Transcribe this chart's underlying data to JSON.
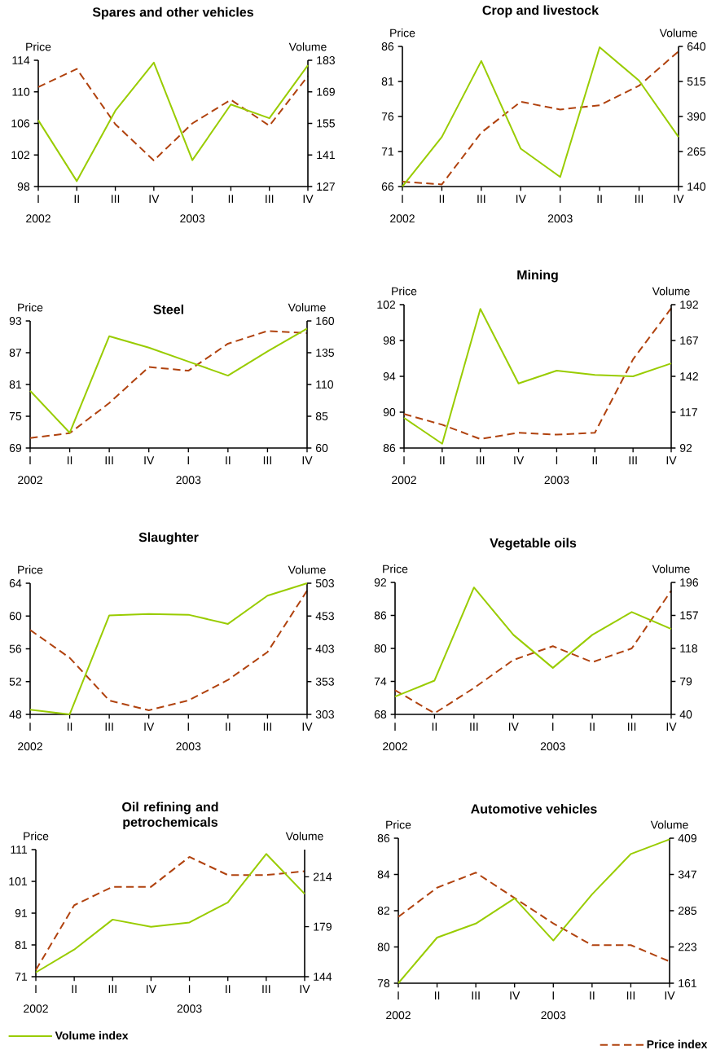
{
  "chart_data": [
    {
      "type": "line",
      "title": "Spares and other vehicles",
      "ylabel": "Price",
      "y2label": "Volume",
      "categories": [
        "I",
        "II",
        "III",
        "IV",
        "I",
        "II",
        "III",
        "IV"
      ],
      "annotations": [
        "2002",
        "2003"
      ],
      "ylim": [
        98,
        114
      ],
      "yticks": [
        98,
        102,
        106,
        110,
        114
      ],
      "y2lim": [
        127,
        183
      ],
      "y2ticks": [
        127,
        141,
        155,
        169,
        183
      ],
      "series": [
        {
          "color": "#b0420e",
          "line_style": "dashed",
          "axis": "y",
          "values": [
            110.6,
            112.9,
            105.9,
            101.3,
            106.0,
            109.0,
            105.7,
            112.0
          ]
        },
        {
          "color": "#99cc00",
          "line_style": "solid",
          "axis": "y2",
          "values": [
            156.4,
            129.4,
            160.6,
            182.0,
            138.7,
            163.4,
            157.3,
            180.8
          ]
        }
      ]
    },
    {
      "type": "line",
      "title": "Crop and livestock",
      "ylabel": "Price",
      "y2label": "Volume",
      "categories": [
        "I",
        "II",
        "III",
        "IV",
        "I",
        "II",
        "III",
        "IV"
      ],
      "annotations": [
        "2002",
        "2003"
      ],
      "ylim": [
        66,
        86
      ],
      "yticks": [
        66,
        71,
        76,
        81,
        86
      ],
      "y2lim": [
        140,
        640
      ],
      "y2ticks": [
        140,
        265,
        390,
        515,
        640
      ],
      "series": [
        {
          "color": "#b0420e",
          "line_style": "dashed",
          "axis": "y",
          "values": [
            66.7,
            66.3,
            73.7,
            78.1,
            77.0,
            77.6,
            80.4,
            85.3
          ]
        },
        {
          "color": "#99cc00",
          "line_style": "solid",
          "axis": "y2",
          "values": [
            140,
            317,
            588,
            275,
            174,
            637,
            518,
            317
          ]
        }
      ]
    },
    {
      "type": "line",
      "title": "Steel",
      "ylabel": "Price",
      "y2label": "Volume",
      "categories": [
        "I",
        "II",
        "III",
        "IV",
        "I",
        "II",
        "III",
        "IV"
      ],
      "annotations": [
        "2002",
        "2003"
      ],
      "ylim": [
        69,
        93
      ],
      "yticks": [
        69,
        75,
        81,
        87,
        93
      ],
      "y2lim": [
        60,
        160
      ],
      "y2ticks": [
        60,
        85,
        110,
        135,
        160
      ],
      "series": [
        {
          "color": "#b0420e",
          "line_style": "dashed",
          "axis": "y",
          "values": [
            70.9,
            71.8,
            77.5,
            84.3,
            83.6,
            88.7,
            91.1,
            90.7
          ]
        },
        {
          "color": "#99cc00",
          "line_style": "solid",
          "axis": "y2",
          "values": [
            105,
            72,
            148,
            139,
            128,
            117,
            136,
            154
          ]
        }
      ]
    },
    {
      "type": "line",
      "title": "Mining",
      "ylabel": "Price",
      "y2label": "Volume",
      "categories": [
        "I",
        "II",
        "III",
        "IV",
        "I",
        "II",
        "III",
        "IV"
      ],
      "annotations": [
        "2002",
        "2003"
      ],
      "ylim": [
        86,
        102
      ],
      "yticks": [
        86,
        90,
        94,
        98,
        102
      ],
      "y2lim": [
        92,
        192
      ],
      "y2ticks": [
        92,
        117,
        142,
        167,
        192
      ],
      "series": [
        {
          "color": "#b0420e",
          "line_style": "dashed",
          "axis": "y",
          "values": [
            89.8,
            88.6,
            87.0,
            87.7,
            87.5,
            87.7,
            95.9,
            101.6
          ]
        },
        {
          "color": "#99cc00",
          "line_style": "solid",
          "axis": "y2",
          "values": [
            113,
            95,
            189,
            137,
            146,
            143,
            142,
            151
          ]
        }
      ]
    },
    {
      "type": "line",
      "title": "Slaughter",
      "ylabel": "Price",
      "y2label": "Volume",
      "categories": [
        "I",
        "II",
        "III",
        "IV",
        "I",
        "II",
        "III",
        "IV"
      ],
      "annotations": [
        "2002",
        "2003"
      ],
      "ylim": [
        48,
        64
      ],
      "yticks": [
        48,
        52,
        56,
        60,
        64
      ],
      "y2lim": [
        303,
        503
      ],
      "y2ticks": [
        303,
        353,
        403,
        453,
        503
      ],
      "series": [
        {
          "color": "#b0420e",
          "line_style": "dashed",
          "axis": "y",
          "values": [
            58.3,
            54.9,
            49.7,
            48.5,
            49.7,
            52.2,
            55.6,
            63.1
          ]
        },
        {
          "color": "#99cc00",
          "line_style": "solid",
          "axis": "y2",
          "values": [
            310,
            303,
            454,
            456,
            455,
            441,
            484,
            503
          ]
        }
      ]
    },
    {
      "type": "line",
      "title": "Vegetable oils",
      "ylabel": "Price",
      "y2label": "Volume",
      "categories": [
        "I",
        "II",
        "III",
        "IV",
        "I",
        "II",
        "III",
        "IV"
      ],
      "annotations": [
        "2002",
        "2003"
      ],
      "ylim": [
        68,
        92
      ],
      "yticks": [
        68,
        74,
        80,
        86,
        92
      ],
      "y2lim": [
        40,
        196
      ],
      "y2ticks": [
        40,
        79,
        118,
        157,
        196
      ],
      "series": [
        {
          "color": "#b0420e",
          "line_style": "dashed",
          "axis": "y",
          "values": [
            72.4,
            68.2,
            72.8,
            77.9,
            80.4,
            77.5,
            80.0,
            90.5
          ]
        },
        {
          "color": "#99cc00",
          "line_style": "solid",
          "axis": "y2",
          "values": [
            61,
            80,
            190,
            134,
            95,
            134,
            161,
            141
          ]
        }
      ]
    },
    {
      "type": "line",
      "title": "Oil refining and petrochemicals",
      "ylabel": "Price",
      "y2label": "Volume",
      "categories": [
        "I",
        "II",
        "III",
        "IV",
        "I",
        "II",
        "III",
        "IV"
      ],
      "annotations": [
        "2002",
        "2003"
      ],
      "ylim": [
        71,
        111
      ],
      "yticks": [
        71,
        81,
        91,
        101,
        111
      ],
      "y2lim": [
        144,
        233
      ],
      "y2ticks": [
        144,
        179,
        214
      ],
      "legend": "bottom left",
      "series": [
        {
          "color": "#b0420e",
          "line_style": "dashed",
          "axis": "y",
          "values": [
            73.1,
            93.5,
            99.3,
            99.3,
            108.7,
            103.0,
            103.0,
            104.2
          ]
        },
        {
          "name": "Volume index",
          "color": "#99cc00",
          "line_style": "solid",
          "axis": "y2",
          "values": [
            147,
            163,
            184,
            179,
            182,
            196,
            230,
            202
          ]
        }
      ]
    },
    {
      "type": "line",
      "title": "Automotive vehicles",
      "ylabel": "Price",
      "y2label": "Volume",
      "categories": [
        "I",
        "II",
        "III",
        "IV",
        "I",
        "II",
        "III",
        "IV"
      ],
      "annotations": [
        "2002",
        "2003"
      ],
      "ylim": [
        78,
        86
      ],
      "yticks": [
        78,
        80,
        82,
        84,
        86
      ],
      "y2lim": [
        161,
        409
      ],
      "y2ticks": [
        161,
        223,
        285,
        347,
        409
      ],
      "legend": "bottom right",
      "series": [
        {
          "name": "Price index",
          "color": "#b0420e",
          "line_style": "dashed",
          "axis": "y",
          "values": [
            81.66,
            83.27,
            84.1,
            82.7,
            81.3,
            80.1,
            80.1,
            79.2
          ]
        },
        {
          "color": "#99cc00",
          "line_style": "solid",
          "axis": "y2",
          "values": [
            161,
            239,
            263,
            306,
            234,
            313,
            382,
            407
          ]
        }
      ]
    }
  ]
}
